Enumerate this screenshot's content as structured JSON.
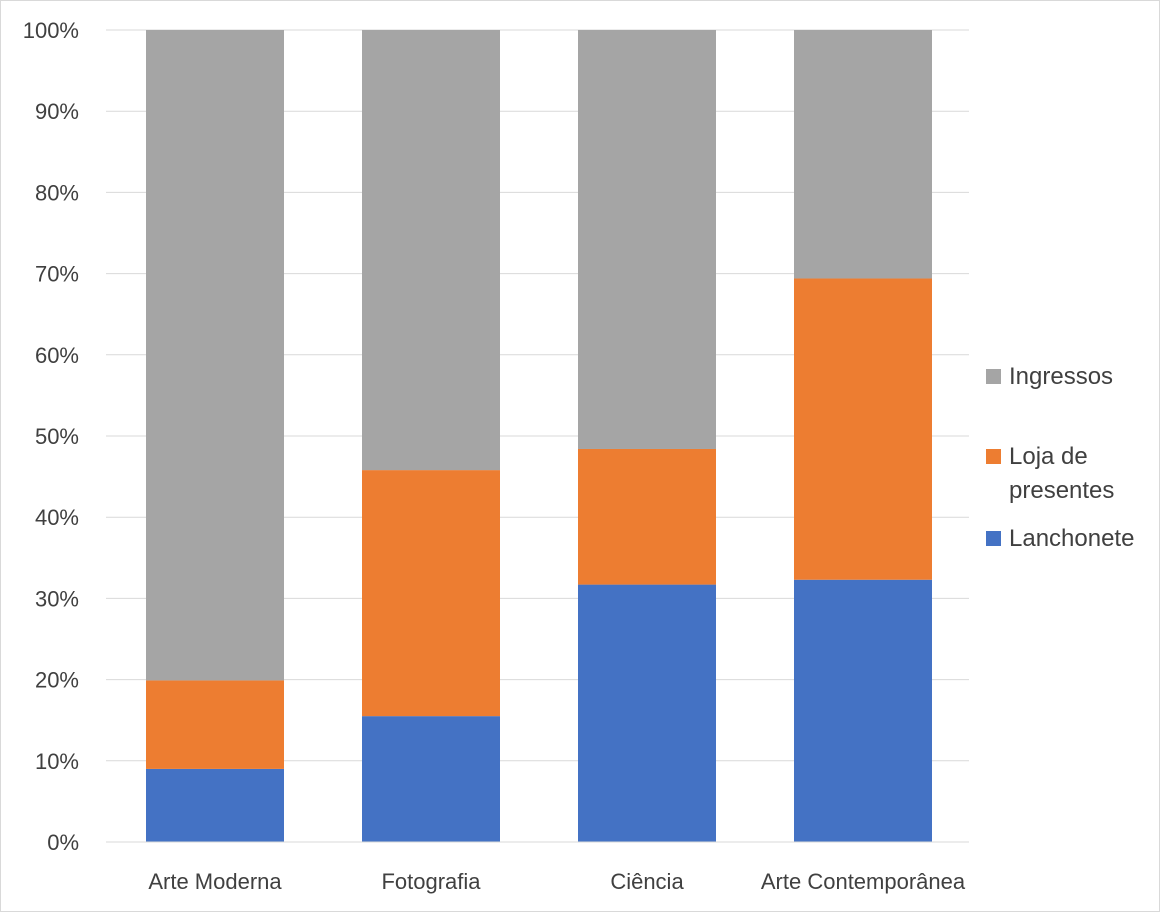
{
  "chart_data": {
    "type": "bar",
    "stacked": true,
    "percent": true,
    "categories": [
      "Arte Moderna",
      "Fotografia",
      "Ciência",
      "Arte Contemporânea"
    ],
    "series": [
      {
        "name": "Lanchonete",
        "color": "#4472C4",
        "values": [
          9,
          15.5,
          31.7,
          32.3
        ]
      },
      {
        "name": "Loja de presentes",
        "color": "#ED7D31",
        "values": [
          10.9,
          30.3,
          16.7,
          37.1
        ]
      },
      {
        "name": "Ingressos",
        "color": "#A5A5A5",
        "values": [
          80.1,
          54.2,
          51.6,
          30.6
        ]
      }
    ],
    "ylim": [
      0,
      100
    ],
    "yticks": [
      "0%",
      "10%",
      "20%",
      "30%",
      "40%",
      "50%",
      "60%",
      "70%",
      "80%",
      "90%",
      "100%"
    ],
    "title": "",
    "xlabel": "",
    "ylabel": "",
    "grid": true,
    "legend": {
      "position": "right",
      "order": [
        "Ingressos",
        "Loja de presentes",
        "Lanchonete"
      ],
      "labels": {
        "Ingressos": [
          "Ingressos"
        ],
        "Loja de presentes": [
          "Loja de",
          "presentes"
        ],
        "Lanchonete": [
          "Lanchonete"
        ]
      }
    }
  }
}
